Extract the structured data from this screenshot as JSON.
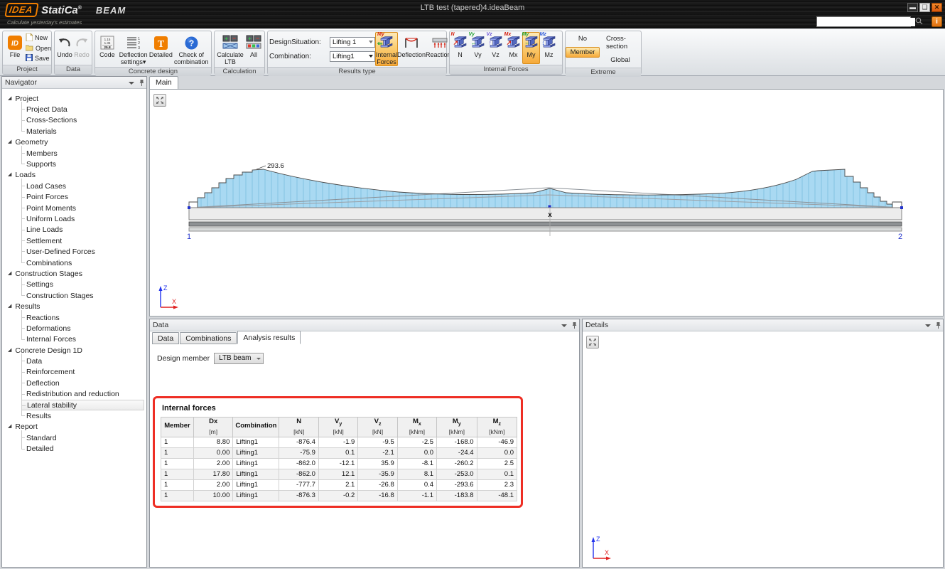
{
  "window": {
    "title": "LTB test (tapered)4.ideaBeam"
  },
  "brand": {
    "logo_idea": "IDEA",
    "logo_statica": "StatiCa",
    "logo_reg": "®",
    "logo_product": "BEAM",
    "tagline": "Calculate yesterday's estimates",
    "info_button": "i"
  },
  "search": {
    "value": "",
    "placeholder": ""
  },
  "ribbon": {
    "groups": {
      "project": {
        "label": "Project",
        "file": "File",
        "new": "New",
        "open": "Open",
        "save": "Save"
      },
      "data": {
        "label": "Data",
        "undo": "Undo",
        "redo": "Redo"
      },
      "concrete": {
        "label": "Concrete design",
        "code": "Code",
        "deflection_settings": "Deflection settings▾",
        "detailed": "Detailed",
        "check": "Check of combination"
      },
      "calculation": {
        "label": "Calculation",
        "calc_ltb": "Calculate LTB",
        "all": "All"
      },
      "results_type": {
        "label": "Results type",
        "design_situation_label": "DesignSituation:",
        "design_situation_value": "Lifting 1",
        "combination_label": "Combination:",
        "combination_value": "Lifting1",
        "internal_forces": "Internal Forces",
        "deflection": "Deflection",
        "reactions": "Reactions",
        "active": "Internal Forces"
      },
      "internal_forces": {
        "label": "Internal Forces",
        "buttons": [
          "N",
          "Vy",
          "Vz",
          "Mx",
          "My",
          "Mz"
        ],
        "active": "My"
      },
      "extreme": {
        "label": "Extreme",
        "no": "No",
        "member": "Member",
        "cross_section": "Cross-section",
        "global": "Global",
        "active": "Member"
      }
    }
  },
  "navigator": {
    "title": "Navigator",
    "sections": [
      {
        "label": "Project",
        "children": [
          "Project Data",
          "Cross-Sections",
          "Materials"
        ]
      },
      {
        "label": "Geometry",
        "children": [
          "Members",
          "Supports"
        ]
      },
      {
        "label": "Loads",
        "children": [
          "Load Cases",
          "Point Forces",
          "Point Moments",
          "Uniform Loads",
          "Line Loads",
          "Settlement",
          "User-Defined Forces",
          "Combinations"
        ]
      },
      {
        "label": "Construction Stages",
        "children": [
          "Settings",
          "Construction Stages"
        ]
      },
      {
        "label": "Results",
        "children": [
          "Reactions",
          "Deformations",
          "Internal Forces"
        ]
      },
      {
        "label": "Concrete Design 1D",
        "children": [
          "Data",
          "Reinforcement",
          "Deflection",
          "Redistribution and reduction",
          "Lateral stability",
          "Results"
        ]
      },
      {
        "label": "Report",
        "children": [
          "Standard",
          "Detailed"
        ]
      }
    ],
    "selected": "Lateral stability"
  },
  "main": {
    "tab": "Main",
    "peak_label": "293.6",
    "node_start": "1",
    "node_end": "2",
    "section_marker": "x"
  },
  "axis": {
    "z": "Z",
    "x": "X"
  },
  "data_panel": {
    "title": "Data",
    "tabs": [
      "Data",
      "Combinations",
      "Analysis results"
    ],
    "active_tab": "Analysis results",
    "design_member_label": "Design member",
    "design_member_value": "LTB beam",
    "table": {
      "title": "Internal forces",
      "columns": [
        {
          "name": "Member",
          "sub": "",
          "unit": ""
        },
        {
          "name": "Dx",
          "sub": "",
          "unit": "[m]"
        },
        {
          "name": "Combination",
          "sub": "",
          "unit": ""
        },
        {
          "name": "N",
          "sub": "",
          "unit": "[kN]"
        },
        {
          "name": "V",
          "sub": "y",
          "unit": "[kN]"
        },
        {
          "name": "V",
          "sub": "z",
          "unit": "[kN]"
        },
        {
          "name": "M",
          "sub": "x",
          "unit": "[kNm]"
        },
        {
          "name": "M",
          "sub": "y",
          "unit": "[kNm]"
        },
        {
          "name": "M",
          "sub": "z",
          "unit": "[kNm]"
        }
      ],
      "rows": [
        [
          "1",
          "8.80",
          "Lifting1",
          "-876.4",
          "-1.9",
          "-9.5",
          "-2.5",
          "-168.0",
          "-46.9"
        ],
        [
          "1",
          "0.00",
          "Lifting1",
          "-75.9",
          "0.1",
          "-2.1",
          "0.0",
          "-24.4",
          "0.0"
        ],
        [
          "1",
          "2.00",
          "Lifting1",
          "-862.0",
          "-12.1",
          "35.9",
          "-8.1",
          "-260.2",
          "2.5"
        ],
        [
          "1",
          "17.80",
          "Lifting1",
          "-862.0",
          "12.1",
          "-35.9",
          "8.1",
          "-253.0",
          "0.1"
        ],
        [
          "1",
          "2.00",
          "Lifting1",
          "-777.7",
          "2.1",
          "-26.8",
          "0.4",
          "-293.6",
          "2.3"
        ],
        [
          "1",
          "10.00",
          "Lifting1",
          "-876.3",
          "-0.2",
          "-16.8",
          "-1.1",
          "-183.8",
          "-48.1"
        ]
      ]
    }
  },
  "details_panel": {
    "title": "Details"
  },
  "colors": {
    "accent_orange": "#f07e00",
    "highlight_fill": "#fbce73",
    "diagram_fill": "#a9d9f2",
    "node_blue": "#2233cc",
    "redbox": "#ee2e24",
    "if_letters": {
      "N": "#d42010",
      "Vy": "#1d9e2f",
      "Vz": "#6f58d8",
      "Mx": "#d42010",
      "My": "#1d9e2f",
      "Mz": "#2a58d8"
    },
    "if_arrows": {
      "N": "↗",
      "Vy": "←",
      "Vz": "↑",
      "Mx": "↗",
      "My": "⇔",
      "Mz": "↕"
    }
  }
}
